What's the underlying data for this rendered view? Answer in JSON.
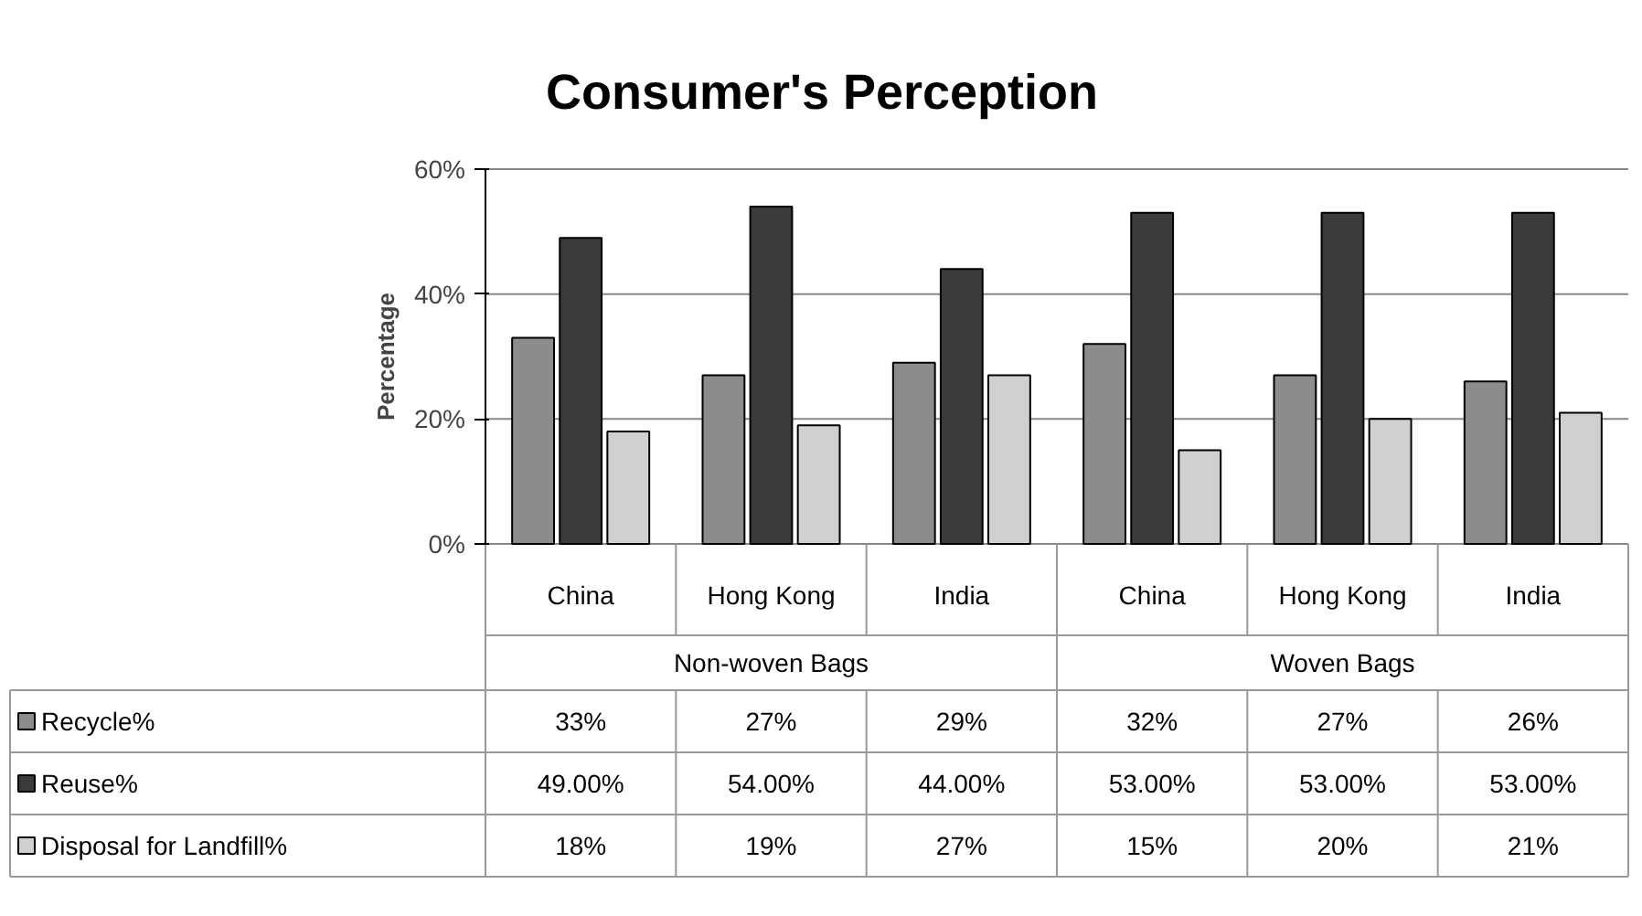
{
  "chart_data": {
    "type": "bar",
    "title": "Consumer's Perception",
    "ylabel": "Percentage",
    "categories": [
      "China",
      "Hong Kong",
      "India",
      "China",
      "Hong Kong",
      "India"
    ],
    "annotations": [
      "Non-woven Bags",
      "Woven Bags"
    ],
    "series": [
      {
        "name": "Recycle%",
        "color": "#8c8c8c",
        "values": [
          33,
          27,
          29,
          32,
          27,
          26
        ],
        "value_labels": [
          "33%",
          "27%",
          "29%",
          "32%",
          "27%",
          "26%"
        ]
      },
      {
        "name": "Reuse%",
        "color": "#3a3a3a",
        "values": [
          49,
          54,
          44,
          53,
          53,
          53
        ],
        "value_labels": [
          "49.00%",
          "54.00%",
          "44.00%",
          "53.00%",
          "53.00%",
          "53.00%"
        ]
      },
      {
        "name": "Disposal for Landfill%",
        "color": "#d0d0d0",
        "values": [
          18,
          19,
          27,
          15,
          20,
          21
        ],
        "value_labels": [
          "18%",
          "19%",
          "27%",
          "15%",
          "20%",
          "21%"
        ]
      }
    ],
    "ylim": [
      0,
      60
    ],
    "yticks": [
      {
        "value": 0,
        "label": "0%"
      },
      {
        "value": 20,
        "label": "20%"
      },
      {
        "value": 40,
        "label": "40%"
      },
      {
        "value": 60,
        "label": "60%"
      }
    ],
    "grid": "y",
    "legend": "bottom"
  }
}
